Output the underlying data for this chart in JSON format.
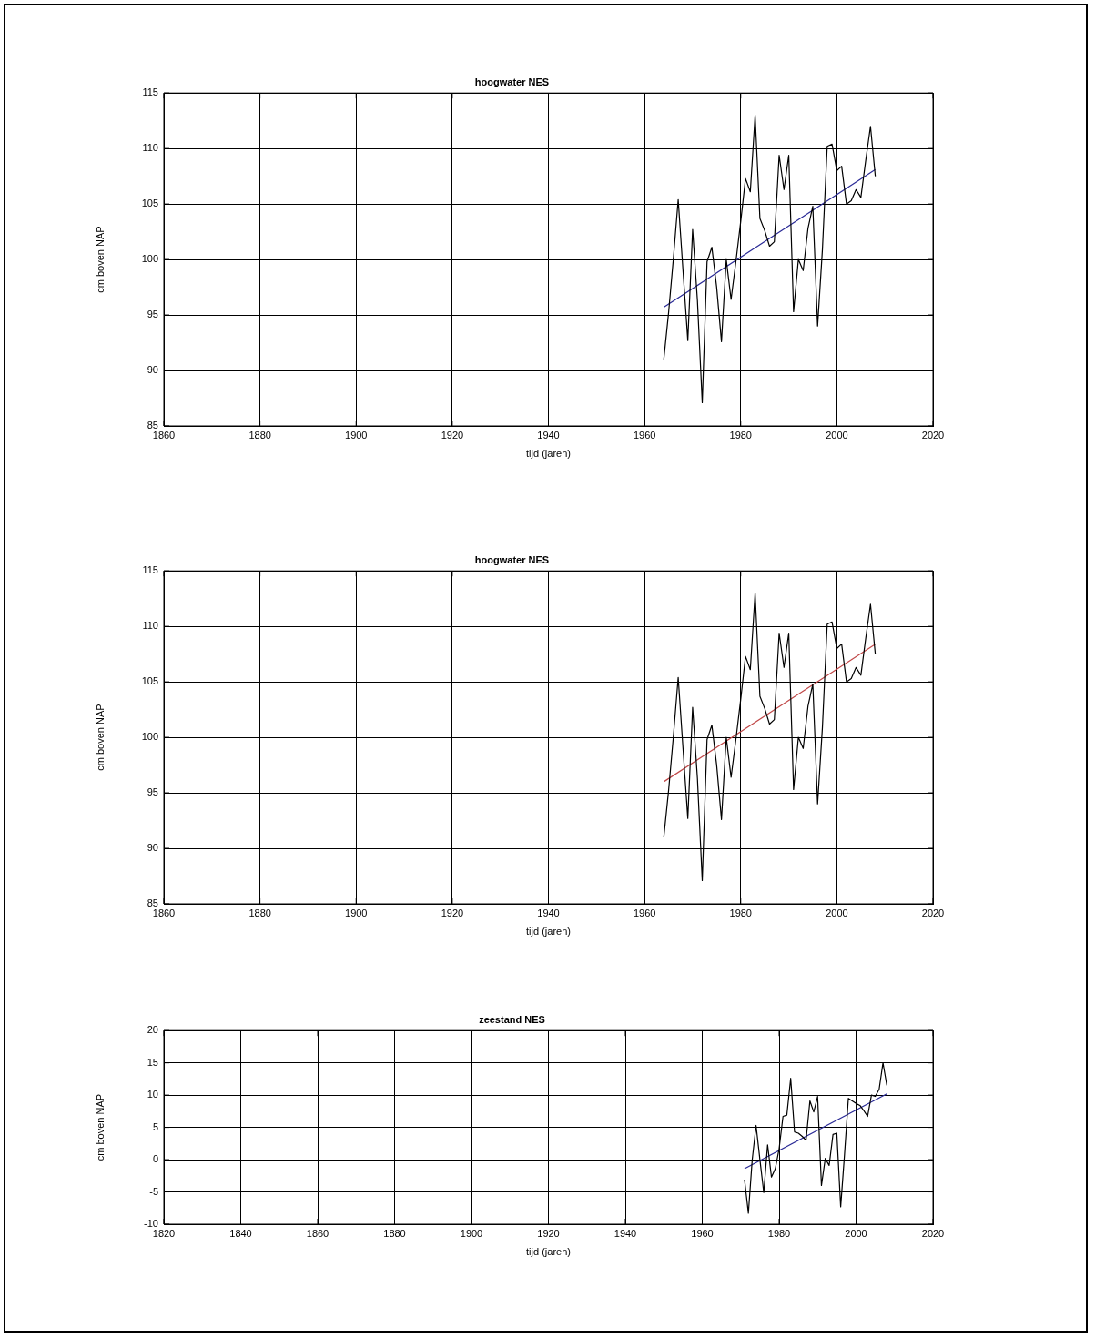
{
  "chart_data": [
    {
      "type": "line",
      "title": "hoogwater NES",
      "xlabel": "tijd (jaren)",
      "ylabel": "cm boven NAP",
      "xlim": [
        1860,
        2020
      ],
      "xticks": [
        1860,
        1880,
        1900,
        1920,
        1940,
        1960,
        1980,
        2000,
        2020
      ],
      "ylim": [
        85,
        115
      ],
      "yticks": [
        85,
        90,
        95,
        100,
        105,
        110,
        115
      ],
      "grid": true,
      "series": [
        {
          "color": "#000000",
          "x": [
            1964,
            1965,
            1966,
            1967,
            1968,
            1969,
            1970,
            1971,
            1972,
            1973,
            1974,
            1975,
            1976,
            1977,
            1978,
            1979,
            1980,
            1981,
            1982,
            1983,
            1984,
            1985,
            1986,
            1987,
            1988,
            1989,
            1990,
            1991,
            1992,
            1993,
            1994,
            1995,
            1996,
            1997,
            1998,
            1999,
            2000,
            2001,
            2002,
            2003,
            2004,
            2005,
            2006,
            2007,
            2008
          ],
          "values": [
            91.0,
            95.2,
            100.1,
            105.4,
            99.0,
            92.7,
            102.7,
            96.3,
            87.1,
            99.8,
            101.1,
            97.5,
            92.6,
            100.0,
            96.4,
            99.8,
            103.4,
            107.3,
            106.1,
            113.0,
            103.7,
            102.6,
            101.2,
            101.6,
            109.4,
            106.3,
            109.4,
            95.3,
            100.0,
            99.0,
            102.8,
            104.8,
            94.0,
            100.9,
            110.2,
            110.4,
            108.0,
            108.4,
            105.0,
            105.3,
            106.3,
            105.6,
            108.9,
            112.0,
            107.5
          ]
        },
        {
          "type": "line",
          "color": "#2a2a96",
          "x": [
            1964,
            2008
          ],
          "values": [
            95.7,
            108.1
          ]
        }
      ]
    },
    {
      "type": "line",
      "title": "hoogwater NES",
      "xlabel": "tijd (jaren)",
      "ylabel": "cm boven NAP",
      "xlim": [
        1860,
        2020
      ],
      "xticks": [
        1860,
        1880,
        1900,
        1920,
        1940,
        1960,
        1980,
        2000,
        2020
      ],
      "ylim": [
        85,
        115
      ],
      "yticks": [
        85,
        90,
        95,
        100,
        105,
        110,
        115
      ],
      "grid": true,
      "series": [
        {
          "color": "#000000",
          "x": [
            1964,
            1965,
            1966,
            1967,
            1968,
            1969,
            1970,
            1971,
            1972,
            1973,
            1974,
            1975,
            1976,
            1977,
            1978,
            1979,
            1980,
            1981,
            1982,
            1983,
            1984,
            1985,
            1986,
            1987,
            1988,
            1989,
            1990,
            1991,
            1992,
            1993,
            1994,
            1995,
            1996,
            1997,
            1998,
            1999,
            2000,
            2001,
            2002,
            2003,
            2004,
            2005,
            2006,
            2007,
            2008
          ],
          "values": [
            91.0,
            95.2,
            100.1,
            105.4,
            99.0,
            92.7,
            102.7,
            96.3,
            87.1,
            99.8,
            101.1,
            97.5,
            92.6,
            100.0,
            96.4,
            99.8,
            103.4,
            107.3,
            106.1,
            113.0,
            103.7,
            102.6,
            101.2,
            101.6,
            109.4,
            106.3,
            109.4,
            95.3,
            100.0,
            99.0,
            102.8,
            104.8,
            94.0,
            100.9,
            110.2,
            110.4,
            108.0,
            108.4,
            105.0,
            105.3,
            106.3,
            105.6,
            108.9,
            112.0,
            107.5
          ]
        },
        {
          "type": "line",
          "color": "#c04848",
          "x": [
            1964,
            2008
          ],
          "values": [
            96.0,
            108.4
          ]
        }
      ]
    },
    {
      "type": "line",
      "title": "zeestand NES",
      "xlabel": "tijd (jaren)",
      "ylabel": "cm boven NAP",
      "xlim": [
        1820,
        2020
      ],
      "xticks": [
        1820,
        1840,
        1860,
        1880,
        1900,
        1920,
        1940,
        1960,
        1980,
        2000,
        2020
      ],
      "ylim": [
        -10,
        20
      ],
      "yticks": [
        -10,
        -5,
        0,
        5,
        10,
        15,
        20
      ],
      "grid": true,
      "series": [
        {
          "color": "#000000",
          "x": [
            1971,
            1972,
            1973,
            1974,
            1975,
            1976,
            1977,
            1978,
            1979,
            1980,
            1981,
            1982,
            1983,
            1984,
            1985,
            1986,
            1987,
            1988,
            1989,
            1990,
            1991,
            1992,
            1993,
            1994,
            1995,
            1996,
            1997,
            1998,
            1999,
            2000,
            2001,
            2002,
            2003,
            2004,
            2005,
            2006,
            2007,
            2008
          ],
          "values": [
            -3.1,
            -8.3,
            0.0,
            5.3,
            0.0,
            -5.1,
            2.3,
            -2.7,
            -1.4,
            1.7,
            6.7,
            6.9,
            12.6,
            4.3,
            4.1,
            3.6,
            3.0,
            9.1,
            7.4,
            9.8,
            -4.0,
            0.2,
            -0.9,
            3.9,
            4.1,
            -7.3,
            0.8,
            9.5,
            9.1,
            8.7,
            8.4,
            7.6,
            6.7,
            10.0,
            9.8,
            10.9,
            15.0,
            11.5
          ]
        },
        {
          "type": "line",
          "color": "#2a2a96",
          "x": [
            1971,
            2008
          ],
          "values": [
            -1.4,
            10.2
          ]
        }
      ]
    }
  ]
}
